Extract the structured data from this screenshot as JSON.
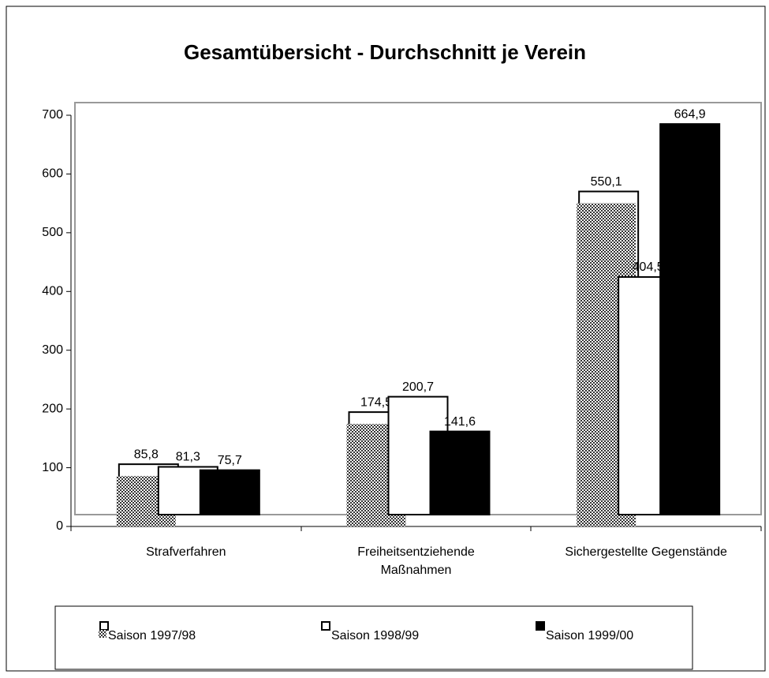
{
  "chart_data": {
    "type": "bar",
    "title": "Gesamtübersicht - Durchschnitt je Verein",
    "categories": [
      "Strafverfahren",
      "Freiheitsentziehende Maßnahmen",
      "Sichergestellte Gegenstände"
    ],
    "series": [
      {
        "name": "Saison 1997/98",
        "color": "#808080",
        "pattern": "checkered",
        "values": [
          85.8,
          174.5,
          550.1
        ],
        "value_labels": [
          "85,8",
          "174,5",
          "550,1"
        ]
      },
      {
        "name": "Saison 1998/99",
        "color": "#ffffff",
        "values": [
          81.3,
          200.7,
          404.5
        ],
        "value_labels": [
          "81,3",
          "200,7",
          "404,5"
        ]
      },
      {
        "name": "Saison 1999/00",
        "color": "#000000",
        "values": [
          75.7,
          141.6,
          664.9
        ],
        "value_labels": [
          "75,7",
          "141,6",
          "664,9"
        ]
      }
    ],
    "ylim": [
      0,
      700
    ],
    "yticks": [
      0,
      100,
      200,
      300,
      400,
      500,
      600,
      700
    ],
    "legend": "bottom"
  }
}
